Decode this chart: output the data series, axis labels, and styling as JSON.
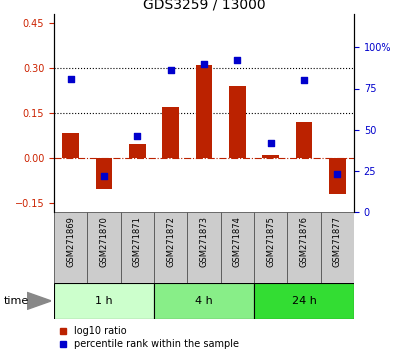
{
  "title": "GDS3259 / 13000",
  "samples": [
    "GSM271869",
    "GSM271870",
    "GSM271871",
    "GSM271872",
    "GSM271873",
    "GSM271874",
    "GSM271875",
    "GSM271876",
    "GSM271877"
  ],
  "log10_ratio": [
    0.083,
    -0.103,
    0.048,
    0.17,
    0.31,
    0.24,
    0.01,
    0.12,
    -0.12
  ],
  "percentile_rank": [
    81,
    22,
    46,
    86,
    90,
    92,
    42,
    80,
    23
  ],
  "groups": [
    {
      "label": "1 h",
      "start": 0,
      "end": 3,
      "color": "#ccffcc"
    },
    {
      "label": "4 h",
      "start": 3,
      "end": 6,
      "color": "#88ee88"
    },
    {
      "label": "24 h",
      "start": 6,
      "end": 9,
      "color": "#33dd33"
    }
  ],
  "ylim_left": [
    -0.18,
    0.48
  ],
  "ylim_right": [
    0,
    120
  ],
  "yticks_left": [
    -0.15,
    0.0,
    0.15,
    0.3,
    0.45
  ],
  "yticks_right": [
    0,
    25,
    50,
    75,
    100
  ],
  "hlines": [
    0.15,
    0.3
  ],
  "bar_color": "#bb2200",
  "dot_color": "#0000cc",
  "bar_width": 0.5,
  "title_color": "#000000",
  "left_tick_color": "#cc2200",
  "right_tick_color": "#0000cc",
  "time_label": "time",
  "legend_bar_label": "log10 ratio",
  "legend_dot_label": "percentile rank within the sample",
  "label_bg_color": "#cccccc",
  "label_border_color": "#555555"
}
